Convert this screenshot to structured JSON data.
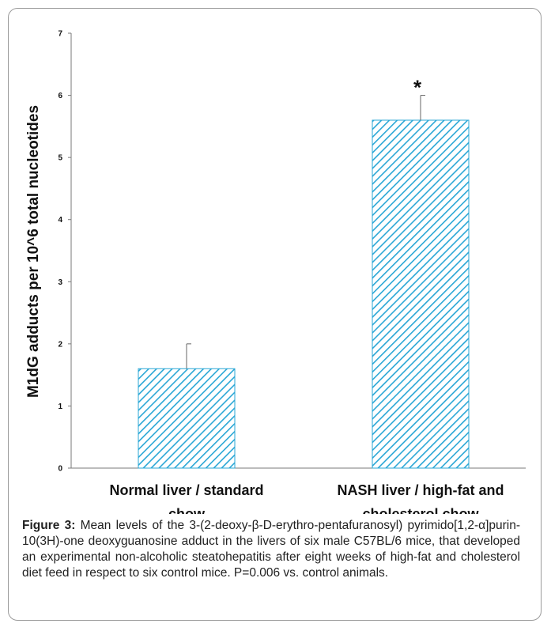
{
  "chart_data": {
    "type": "bar",
    "categories": [
      [
        "Normal liver / standard",
        "chow"
      ],
      [
        "NASH liver / high-fat and",
        "cholesterol chow"
      ]
    ],
    "values": [
      1.6,
      5.6
    ],
    "error_upper": [
      2.0,
      6.0
    ],
    "annotations": [
      "",
      "*"
    ],
    "ylabel": "M1dG adducts per 10^6  total nucleotides",
    "ylim": [
      0,
      7
    ],
    "yticks": [
      "0",
      "1",
      "2",
      "3",
      "4",
      "5",
      "6",
      "7"
    ],
    "grid": false,
    "bar_color": "#2aa7d6"
  },
  "caption": {
    "label": "Figure 3:",
    "text": " Mean levels of the 3-(2-deoxy-β-D-erythro-pentafuranosyl) pyrimido[1,2-α]purin-10(3H)-one deoxyguanosine adduct in the livers of six male C57BL/6 mice, that developed an experimental non-alcoholic steatohepatitis after eight weeks of high-fat and cholesterol diet feed in respect to six control mice. P=0.006 vs. control animals."
  }
}
